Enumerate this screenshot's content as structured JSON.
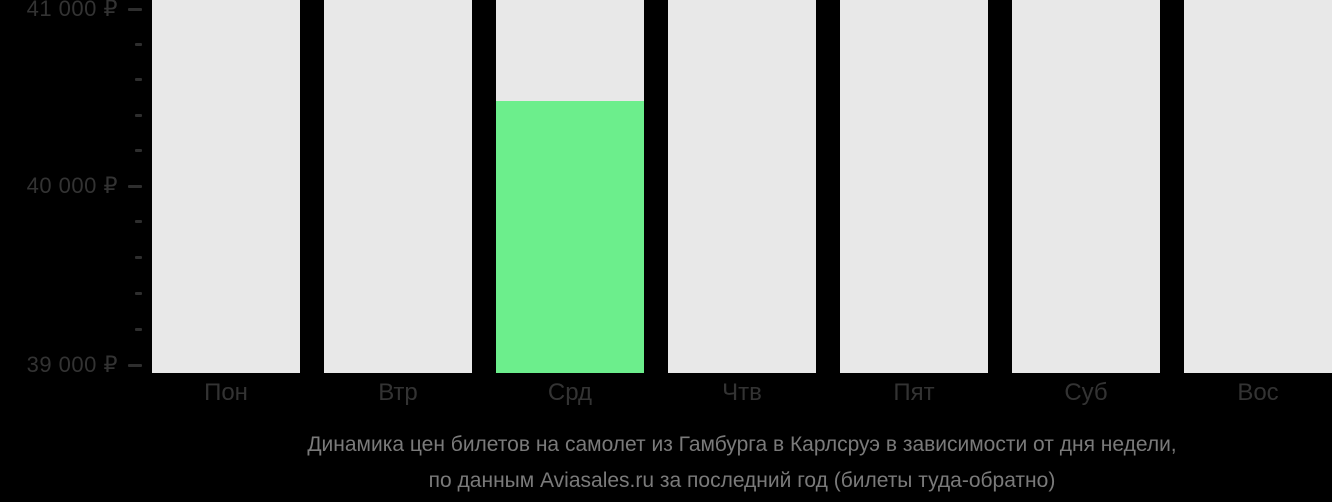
{
  "chart_data": {
    "type": "bar",
    "title": "Динамика цен билетов на самолет из Гамбурга в Карлсруэ в зависимости от дня недели, по данным Aviasales.ru за последний год (билеты туда-обратно)",
    "caption_line1": "Динамика цен билетов на самолет из Гамбурга в Карлсруэ в зависимости от дня недели,",
    "caption_line2": "по данным Aviasales.ru за последний год (билеты туда-обратно)",
    "categories": [
      "Пон",
      "Втр",
      "Срд",
      "Чтв",
      "Пят",
      "Суб",
      "Вос"
    ],
    "values": [
      null,
      null,
      40485,
      null,
      null,
      null,
      null
    ],
    "currency": "₽",
    "xlabel": "",
    "ylabel": "",
    "yaxis": {
      "tick_labels": [
        "41 000 ₽",
        "40 000 ₽",
        "39 000 ₽"
      ],
      "tick_values": [
        41000,
        40000,
        39000
      ],
      "minor_ticks_between_majors": 4,
      "ylim": [
        38950,
        41050
      ]
    },
    "grid": "off",
    "legend_position": "none",
    "colors": {
      "background": "#000000",
      "bar_placeholder": "#e8e8e8",
      "bar_value": "#6cee8c",
      "axis_text": "#333333",
      "tick_mark": "#2e2e2e",
      "caption_text": "#7a7a7a"
    }
  }
}
